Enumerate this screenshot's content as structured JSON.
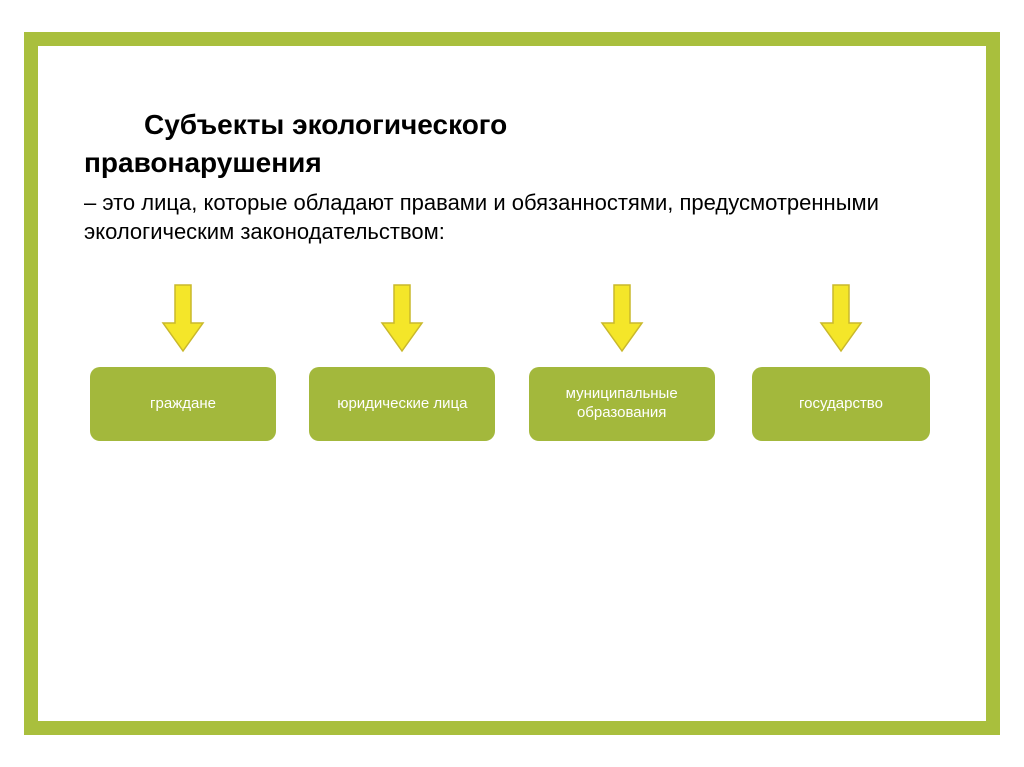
{
  "frame": {
    "border_color": "#a9bf3d",
    "border_width": 14,
    "background": "#ffffff"
  },
  "heading": {
    "line1": "Субъекты   экологического",
    "line2": "правонарушения",
    "font_size": 28,
    "font_weight": "bold",
    "color": "#000000"
  },
  "definition": {
    "prefix": " – ",
    "text": "это лица, которые обладают правами и обязанностями, предусмотренными экологическим законодательством:",
    "font_size": 22,
    "color": "#000000"
  },
  "arrow": {
    "fill": "#f4e629",
    "stroke": "#c9b82b",
    "width": 44,
    "height": 70
  },
  "boxes": {
    "fill": "#a3b83c",
    "text_color": "#ffffff",
    "font_size": 15,
    "radius": 10,
    "items": [
      {
        "label": "граждане"
      },
      {
        "label": "юридические лица"
      },
      {
        "label": "муниципальные образования"
      },
      {
        "label": "государство"
      }
    ]
  }
}
